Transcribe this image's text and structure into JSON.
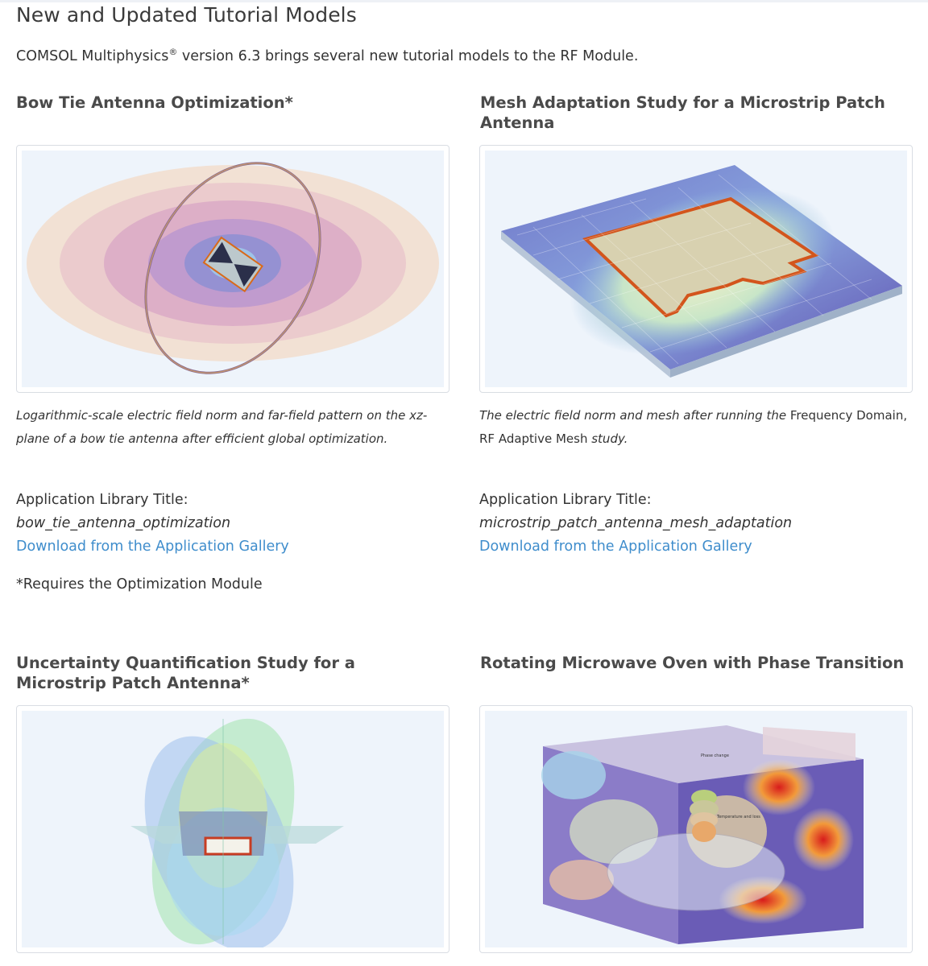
{
  "page": {
    "title": "New and Updated Tutorial Models",
    "intro_pre": "COMSOL Multiphysics",
    "intro_sup": "®",
    "intro_post": " version 6.3 brings several new tutorial models to the RF Module."
  },
  "models": [
    {
      "heading": "Bow Tie Antenna Optimization*",
      "caption_a": "Logarithmic-scale electric field norm and far-field pattern on the xz-plane of a bow tie antenna after efficient global optimization.",
      "lib_label": "Application Library Title:",
      "lib_name": "bow_tie_antenna_optimization",
      "link": "Download from the Application Gallery",
      "note": "*Requires the Optimization Module"
    },
    {
      "heading": "Mesh Adaptation Study for a Microstrip Patch Antenna",
      "caption_a": "The electric field norm and mesh after running the ",
      "caption_b": "Frequency Domain, RF Adaptive Mesh",
      "caption_c": " study.",
      "lib_label": "Application Library Title:",
      "lib_name": "microstrip_patch_antenna_mesh_adaptation",
      "link": "Download from the Application Gallery"
    },
    {
      "heading": "Uncertainty Quantification Study for a Microstrip Patch Antenna*"
    },
    {
      "heading": "Rotating Microwave Oven with Phase Transition",
      "image_labels": [
        "Phase change",
        "Temperature and loss"
      ]
    }
  ]
}
